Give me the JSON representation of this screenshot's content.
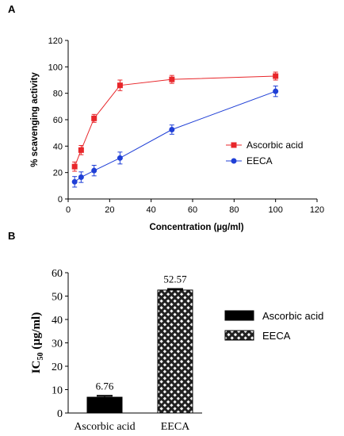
{
  "chart_data": [
    {
      "panel": "A",
      "type": "line",
      "xlabel": "Concentration (µg/ml)",
      "ylabel": "% scavenging activity",
      "xlim": [
        0,
        120
      ],
      "ylim": [
        0,
        120
      ],
      "xticks": [
        0,
        20,
        40,
        60,
        80,
        100,
        120
      ],
      "yticks": [
        0,
        20,
        40,
        60,
        80,
        100,
        120
      ],
      "grid": false,
      "legend_position": "right",
      "series": [
        {
          "name": "Ascorbic acid",
          "color": "#e8262a",
          "marker": "square",
          "x": [
            3.125,
            6.25,
            12.5,
            25,
            50,
            100
          ],
          "y": [
            24.5,
            37,
            61,
            86,
            90.5,
            93
          ],
          "err": [
            3.5,
            3.5,
            3,
            4,
            3,
            3
          ]
        },
        {
          "name": "EECA",
          "color": "#1f3fd6",
          "marker": "circle",
          "x": [
            3.125,
            6.25,
            12.5,
            25,
            50,
            100
          ],
          "y": [
            13,
            16.5,
            21.5,
            31,
            52.5,
            81.5
          ],
          "err": [
            4,
            4,
            4,
            4.5,
            3.5,
            4
          ]
        }
      ]
    },
    {
      "panel": "B",
      "type": "bar",
      "ylabel_main": "IC",
      "ylabel_sub": "50",
      "ylabel_rest": " (µg/ml)",
      "ylim": [
        0,
        60
      ],
      "yticks": [
        0,
        10,
        20,
        30,
        40,
        50,
        60
      ],
      "legend_position": "right",
      "categories": [
        "Ascorbic acid",
        "EECA"
      ],
      "values": [
        6.76,
        52.57
      ],
      "value_labels": [
        "6.76",
        "52.57"
      ],
      "err": [
        0.6,
        0.5
      ],
      "fills": [
        "solid-black",
        "crosshatch"
      ],
      "legend": [
        "Ascorbic acid",
        "EECA"
      ]
    }
  ]
}
